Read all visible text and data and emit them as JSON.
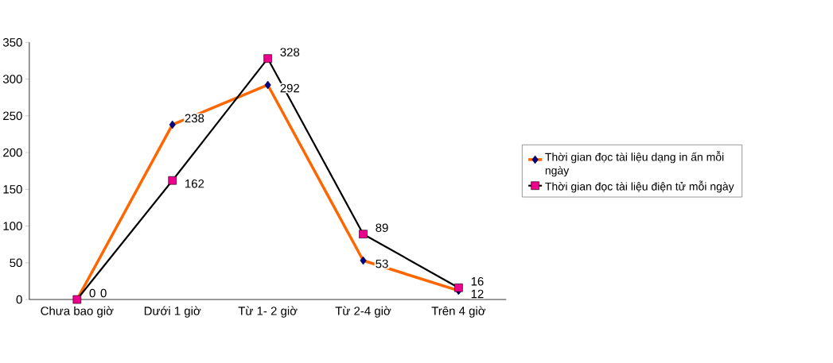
{
  "chart_data": {
    "type": "line",
    "categories": [
      "Chưa bao giờ",
      "Dưới 1 giờ",
      "Từ 1- 2 giờ",
      "Từ 2-4 giờ",
      "Trên 4 giờ"
    ],
    "series": [
      {
        "name": "Thời gian đọc tài liệu dạng in ấn mỗi ngày",
        "color": "#ff6600",
        "values": [
          0,
          238,
          292,
          53,
          12
        ],
        "marker": "diamond"
      },
      {
        "name": "Thời gian đọc tài liệu điện tử mỗi ngày",
        "color": "#000000",
        "values": [
          0,
          162,
          328,
          89,
          16
        ],
        "marker": "square"
      }
    ],
    "ylim": [
      0,
      350
    ],
    "yticks": [
      0,
      50,
      100,
      150,
      200,
      250,
      300,
      350
    ],
    "grid": false,
    "legend": "right",
    "data_labels": true
  }
}
